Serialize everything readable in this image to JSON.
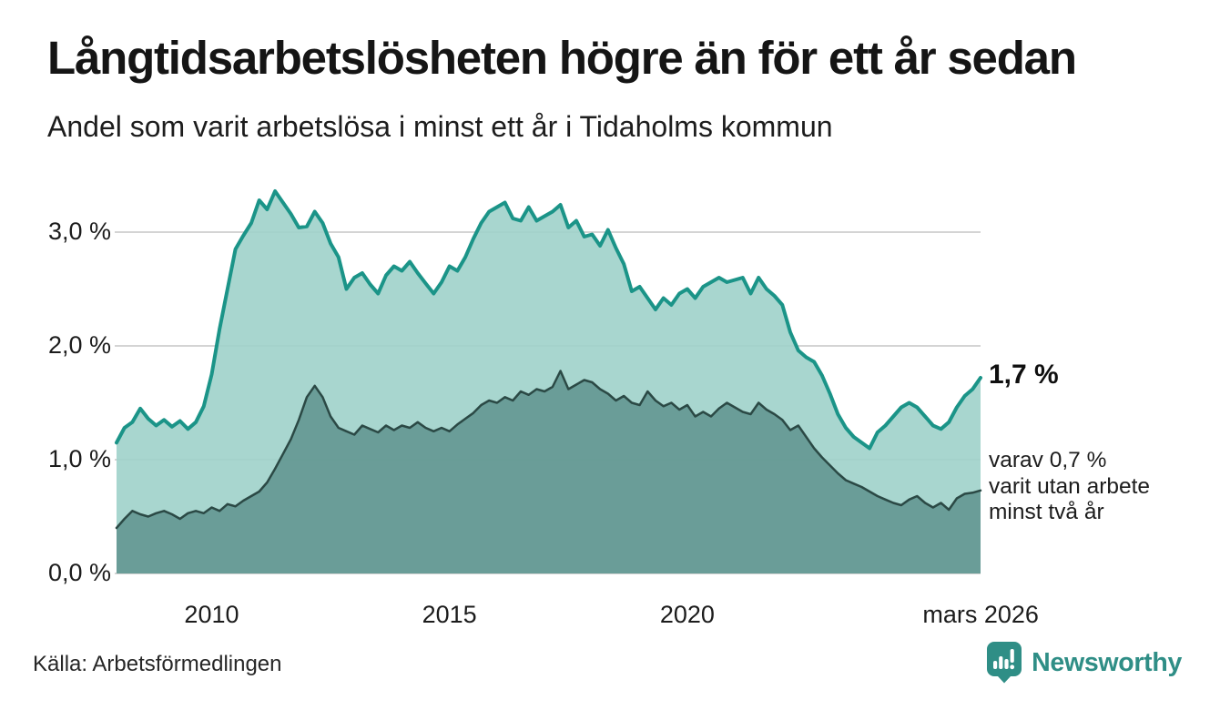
{
  "header": {
    "title": "Långtidsarbetslösheten högre än för ett år sedan",
    "subtitle": "Andel som varit arbetslösa i minst ett år i Tidaholms kommun"
  },
  "annotations": {
    "current_value": "1,7 %",
    "secondary_lines": [
      "varav 0,7 %",
      "varit utan arbete",
      "minst två år"
    ]
  },
  "footer": {
    "source": "Källa: Arbetsförmedlingen",
    "brand": "Newsworthy"
  },
  "colors": {
    "line_1yr": "#1b9488",
    "fill_1yr": "#9ed1ca",
    "line_2yr": "#2b4945",
    "fill_2yr": "#639791",
    "grid": "#d4d4d4",
    "brand_teal": "#2f8e86",
    "text": "#1a1a1a"
  },
  "chart_data": {
    "type": "area",
    "title": "Långtidsarbetslösheten högre än för ett år sedan",
    "subtitle": "Andel som varit arbetslösa i minst ett år i Tidaholms kommun",
    "unit": "%",
    "grid": true,
    "grid_color": "#d4d4d4",
    "x_axis": {
      "min": 2008.0,
      "max": 2026.1667,
      "step": 0.1666667,
      "ticks": [
        {
          "value": 2010,
          "label": "2010"
        },
        {
          "value": 2015,
          "label": "2015"
        },
        {
          "value": 2020,
          "label": "2020"
        },
        {
          "value": 2026.17,
          "label": "mars 2026"
        }
      ]
    },
    "y_axis": {
      "min": 0,
      "max": 3.52,
      "ticks": [
        {
          "value": 0,
          "label": "0,0 %"
        },
        {
          "value": 1,
          "label": "1,0 %"
        },
        {
          "value": 2,
          "label": "2,0 %"
        },
        {
          "value": 3,
          "label": "3,0 %"
        }
      ]
    },
    "series": [
      {
        "name": "Andel arbetslösa minst ett år",
        "current_value": "1,7 %",
        "color": "#1b9488",
        "fill": "#9ed1ca",
        "stroke_width": 4,
        "values": [
          1.15,
          1.28,
          1.33,
          1.45,
          1.36,
          1.3,
          1.35,
          1.29,
          1.34,
          1.27,
          1.33,
          1.47,
          1.75,
          2.15,
          2.5,
          2.85,
          2.97,
          3.08,
          3.28,
          3.2,
          3.36,
          3.26,
          3.16,
          3.04,
          3.05,
          3.18,
          3.08,
          2.9,
          2.78,
          2.5,
          2.6,
          2.64,
          2.54,
          2.46,
          2.62,
          2.7,
          2.66,
          2.74,
          2.64,
          2.55,
          2.46,
          2.56,
          2.7,
          2.66,
          2.78,
          2.94,
          3.08,
          3.18,
          3.22,
          3.26,
          3.12,
          3.1,
          3.22,
          3.1,
          3.14,
          3.18,
          3.24,
          3.04,
          3.1,
          2.96,
          2.98,
          2.88,
          3.02,
          2.86,
          2.72,
          2.48,
          2.52,
          2.42,
          2.32,
          2.42,
          2.36,
          2.46,
          2.5,
          2.42,
          2.52,
          2.56,
          2.6,
          2.56,
          2.58,
          2.6,
          2.46,
          2.6,
          2.5,
          2.44,
          2.36,
          2.12,
          1.96,
          1.9,
          1.86,
          1.74,
          1.58,
          1.4,
          1.28,
          1.2,
          1.15,
          1.1,
          1.24,
          1.3,
          1.38,
          1.46,
          1.5,
          1.46,
          1.38,
          1.3,
          1.27,
          1.33,
          1.46,
          1.56,
          1.62,
          1.72
        ]
      },
      {
        "name": "Andel arbetslösa minst två år",
        "current_value": "0,7 %",
        "color": "#2b4945",
        "fill": "#639791",
        "stroke_width": 2.5,
        "values": [
          0.4,
          0.48,
          0.55,
          0.52,
          0.5,
          0.53,
          0.55,
          0.52,
          0.48,
          0.53,
          0.55,
          0.53,
          0.58,
          0.55,
          0.61,
          0.59,
          0.64,
          0.68,
          0.72,
          0.8,
          0.92,
          1.05,
          1.18,
          1.35,
          1.55,
          1.65,
          1.55,
          1.38,
          1.28,
          1.25,
          1.22,
          1.3,
          1.27,
          1.24,
          1.3,
          1.26,
          1.3,
          1.28,
          1.33,
          1.28,
          1.25,
          1.28,
          1.25,
          1.31,
          1.36,
          1.41,
          1.48,
          1.52,
          1.5,
          1.55,
          1.52,
          1.6,
          1.57,
          1.62,
          1.6,
          1.64,
          1.78,
          1.62,
          1.66,
          1.7,
          1.68,
          1.62,
          1.58,
          1.52,
          1.56,
          1.5,
          1.48,
          1.6,
          1.52,
          1.47,
          1.5,
          1.44,
          1.48,
          1.38,
          1.42,
          1.38,
          1.45,
          1.5,
          1.46,
          1.42,
          1.4,
          1.5,
          1.44,
          1.4,
          1.35,
          1.26,
          1.3,
          1.2,
          1.1,
          1.02,
          0.95,
          0.88,
          0.82,
          0.79,
          0.76,
          0.72,
          0.68,
          0.65,
          0.62,
          0.6,
          0.65,
          0.68,
          0.62,
          0.58,
          0.62,
          0.56,
          0.66,
          0.7,
          0.71,
          0.73
        ]
      }
    ]
  }
}
